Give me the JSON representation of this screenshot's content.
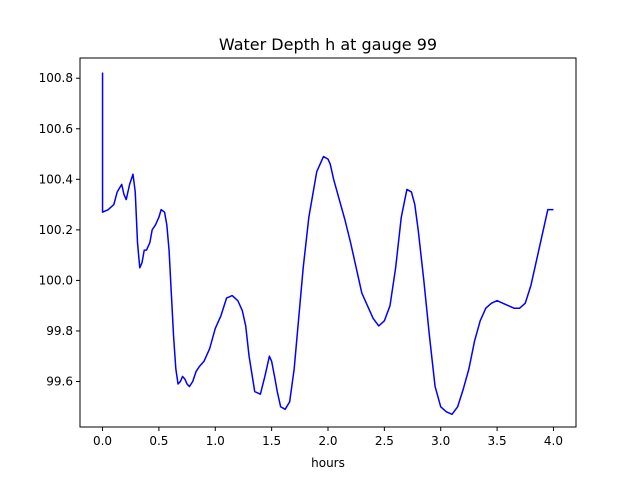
{
  "chart_data": {
    "type": "line",
    "title": "Water Depth h at gauge 99",
    "xlabel": "hours",
    "ylabel": "",
    "xlim": [
      -0.2,
      4.2
    ],
    "ylim": [
      99.42,
      100.88
    ],
    "xticks": [
      0.0,
      0.5,
      1.0,
      1.5,
      2.0,
      2.5,
      3.0,
      3.5,
      4.0
    ],
    "xtick_labels": [
      "0.0",
      "0.5",
      "1.0",
      "1.5",
      "2.0",
      "2.5",
      "3.0",
      "3.5",
      "4.0"
    ],
    "yticks": [
      99.6,
      99.8,
      100.0,
      100.2,
      100.4,
      100.6,
      100.8
    ],
    "ytick_labels": [
      "99.6",
      "99.8",
      "100.0",
      "100.2",
      "100.4",
      "100.6",
      "100.8"
    ],
    "grid": false,
    "line_color": "#0000ff",
    "series": [
      {
        "x": [
          0.0,
          0.0,
          0.0,
          0.05,
          0.1,
          0.13,
          0.17,
          0.19,
          0.21,
          0.24,
          0.27,
          0.29,
          0.31,
          0.33,
          0.35,
          0.37,
          0.39,
          0.42,
          0.44,
          0.47,
          0.5,
          0.52,
          0.55,
          0.57,
          0.59,
          0.61,
          0.63,
          0.65,
          0.67,
          0.69,
          0.71,
          0.73,
          0.75,
          0.77,
          0.8,
          0.83,
          0.86,
          0.9,
          0.95,
          1.0,
          1.05,
          1.1,
          1.15,
          1.2,
          1.24,
          1.27,
          1.3,
          1.35,
          1.4,
          1.44,
          1.48,
          1.5,
          1.53,
          1.55,
          1.58,
          1.62,
          1.66,
          1.7,
          1.74,
          1.78,
          1.83,
          1.9,
          1.96,
          2.0,
          2.02,
          2.05,
          2.1,
          2.15,
          2.2,
          2.3,
          2.4,
          2.45,
          2.5,
          2.55,
          2.6,
          2.65,
          2.7,
          2.74,
          2.77,
          2.8,
          2.85,
          2.9,
          2.95,
          3.0,
          3.05,
          3.1,
          3.15,
          3.2,
          3.25,
          3.3,
          3.35,
          3.4,
          3.45,
          3.5,
          3.55,
          3.6,
          3.65,
          3.7,
          3.75,
          3.8,
          3.85,
          3.9,
          3.95,
          4.0
        ],
        "y": [
          100.27,
          100.82,
          100.27,
          100.28,
          100.3,
          100.35,
          100.38,
          100.34,
          100.32,
          100.38,
          100.42,
          100.35,
          100.15,
          100.05,
          100.07,
          100.12,
          100.12,
          100.15,
          100.2,
          100.22,
          100.25,
          100.28,
          100.27,
          100.22,
          100.12,
          99.95,
          99.78,
          99.65,
          99.59,
          99.6,
          99.62,
          99.61,
          99.59,
          99.58,
          99.6,
          99.64,
          99.66,
          99.68,
          99.73,
          99.81,
          99.86,
          99.93,
          99.94,
          99.92,
          99.88,
          99.82,
          99.7,
          99.56,
          99.55,
          99.62,
          99.7,
          99.68,
          99.61,
          99.56,
          99.5,
          99.49,
          99.52,
          99.65,
          99.85,
          100.05,
          100.25,
          100.43,
          100.49,
          100.48,
          100.46,
          100.4,
          100.32,
          100.24,
          100.15,
          99.95,
          99.85,
          99.82,
          99.84,
          99.9,
          100.05,
          100.25,
          100.36,
          100.35,
          100.3,
          100.2,
          100.0,
          99.78,
          99.58,
          99.5,
          99.48,
          99.47,
          99.5,
          99.57,
          99.65,
          99.76,
          99.84,
          99.89,
          99.91,
          99.92,
          99.91,
          99.9,
          99.89,
          99.89,
          99.91,
          99.98,
          100.08,
          100.18,
          100.28,
          100.28
        ]
      }
    ]
  }
}
